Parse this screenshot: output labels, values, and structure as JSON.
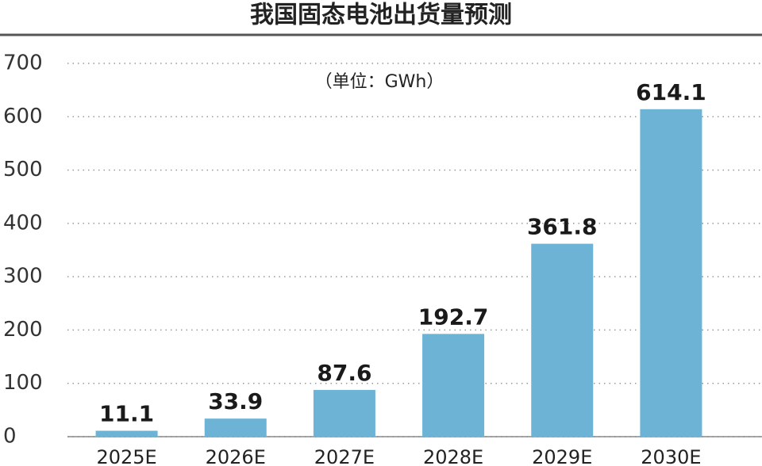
{
  "chart_data": {
    "type": "bar",
    "title": "我国固态电池出货量预测",
    "subtitle": "（单位：GWh）",
    "categories": [
      "2025E",
      "2026E",
      "2027E",
      "2028E",
      "2029E",
      "2030E"
    ],
    "values": [
      11.1,
      33.9,
      87.6,
      192.7,
      361.8,
      614.1
    ],
    "color": "#6cb3d6",
    "ylim": [
      0,
      700
    ],
    "yticks": [
      0,
      100,
      200,
      300,
      400,
      500,
      600,
      700
    ],
    "grid": true
  }
}
